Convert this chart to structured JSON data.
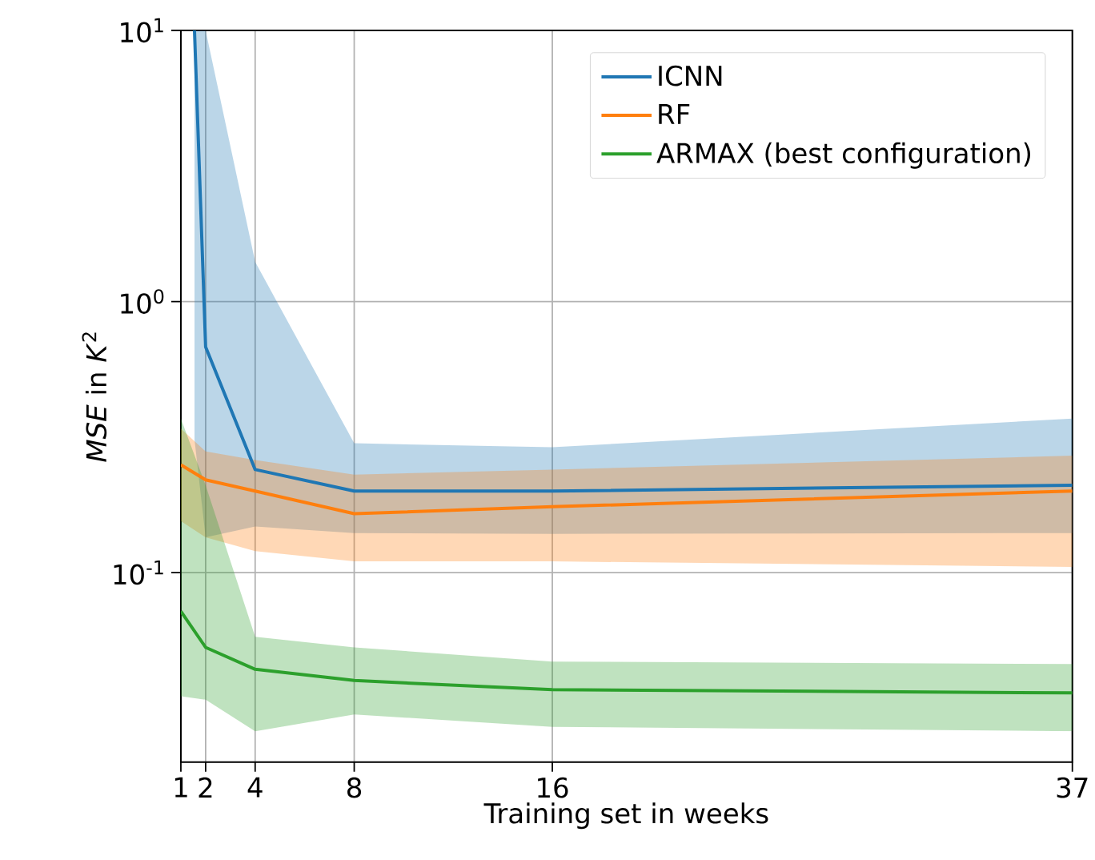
{
  "chart_data": {
    "type": "line",
    "xlabel": "Training set in weeks",
    "ylabel": "*MSE* in *K*$^{2}$",
    "xlim": [
      1,
      37
    ],
    "xticks": [
      1,
      2,
      4,
      8,
      16,
      37
    ],
    "ylim": [
      0.02,
      10
    ],
    "yticks": [
      {
        "value": 0.1,
        "label": "10$^{-1}$"
      },
      {
        "value": 1,
        "label": "10$^{0}$"
      },
      {
        "value": 10,
        "label": "10$^{1}$"
      }
    ],
    "log": "y",
    "grid": true,
    "legend": "top right",
    "marker": "none",
    "line_style": "solid",
    "series": [
      {
        "name": "ICNN",
        "color": "#1f77b4",
        "x": [
          1.55,
          2,
          4,
          8,
          16,
          37
        ],
        "values": [
          10,
          0.68,
          0.24,
          0.2,
          0.2,
          0.21
        ],
        "lower": [
          0.31,
          0.135,
          0.148,
          0.14,
          0.139,
          0.14
        ],
        "upper": [
          10,
          10,
          1.4,
          0.3,
          0.29,
          0.37
        ]
      },
      {
        "name": "RF",
        "color": "#ff7f0e",
        "x": [
          1,
          2,
          4,
          8,
          16,
          37
        ],
        "values": [
          0.25,
          0.22,
          0.2,
          0.165,
          0.175,
          0.2
        ],
        "lower": [
          0.155,
          0.135,
          0.12,
          0.11,
          0.11,
          0.105
        ],
        "upper": [
          0.34,
          0.28,
          0.26,
          0.23,
          0.24,
          0.27
        ]
      },
      {
        "name": "ARMAX (best configuration)",
        "color": "#2ca02c",
        "x": [
          1,
          2,
          4,
          8,
          16,
          37
        ],
        "values": [
          0.072,
          0.053,
          0.044,
          0.04,
          0.037,
          0.036
        ],
        "lower": [
          0.035,
          0.034,
          0.026,
          0.03,
          0.027,
          0.026
        ],
        "upper": [
          0.37,
          0.21,
          0.058,
          0.053,
          0.047,
          0.046
        ]
      }
    ]
  }
}
